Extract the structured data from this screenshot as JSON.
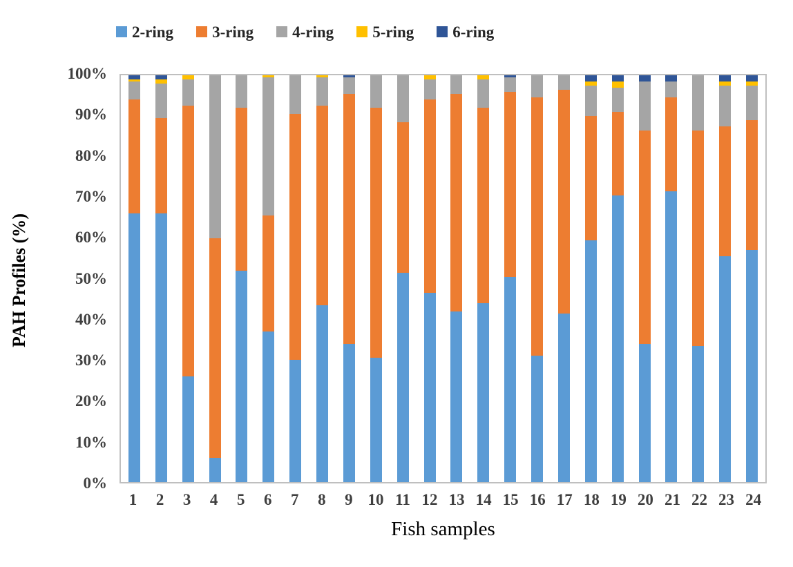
{
  "figure": {
    "background": "#ffffff",
    "plot_border_color": "#bfbfbf",
    "tick_text_color": "#3f3f3f",
    "title_text_color": "#000000"
  },
  "y_axis": {
    "title": "PAH Profiles (%)",
    "ticks": [
      "0%",
      "10%",
      "20%",
      "30%",
      "40%",
      "50%",
      "60%",
      "70%",
      "80%",
      "90%",
      "100%"
    ]
  },
  "x_axis": {
    "title": "Fish samples"
  },
  "legend": {
    "position": "top",
    "items": [
      {
        "label": "2-ring",
        "color": "#5B9BD5"
      },
      {
        "label": "3-ring",
        "color": "#ED7D31"
      },
      {
        "label": "4-ring",
        "color": "#A5A5A5"
      },
      {
        "label": "5-ring",
        "color": "#FFC000"
      },
      {
        "label": "6-ring",
        "color": "#2F5597"
      }
    ]
  },
  "chart_data": {
    "type": "bar",
    "stacked": true,
    "units": "percent",
    "title": "",
    "xlabel": "Fish samples",
    "ylabel": "PAH Profiles (%)",
    "ylim": [
      0,
      100
    ],
    "grid": false,
    "legend_position": "top",
    "categories": [
      "1",
      "2",
      "3",
      "4",
      "5",
      "6",
      "7",
      "8",
      "9",
      "10",
      "11",
      "12",
      "13",
      "14",
      "15",
      "16",
      "17",
      "18",
      "19",
      "20",
      "21",
      "22",
      "23",
      "24"
    ],
    "series": [
      {
        "name": "2-ring",
        "color": "#5B9BD5",
        "values": [
          66,
          66,
          26,
          6,
          52,
          37,
          30,
          43.5,
          34,
          30.5,
          51.5,
          46.5,
          42,
          44,
          50.5,
          31,
          41.5,
          59.5,
          70.5,
          34,
          71.5,
          33.5,
          55.5,
          57
        ]
      },
      {
        "name": "3-ring",
        "color": "#ED7D31",
        "values": [
          28,
          23.5,
          66.5,
          54,
          40,
          28.5,
          60.5,
          49,
          61.5,
          61.5,
          37,
          47.5,
          53.5,
          48,
          45.5,
          63.5,
          55,
          30.5,
          20.5,
          52.5,
          23,
          53,
          32,
          32
        ]
      },
      {
        "name": "4-ring",
        "color": "#A5A5A5",
        "values": [
          4.5,
          8.5,
          6.5,
          40,
          8,
          34,
          9.5,
          7,
          4,
          8,
          11.5,
          5,
          4.5,
          7,
          3.5,
          5.5,
          3.5,
          7.5,
          6,
          12,
          4,
          13.5,
          10,
          8.5
        ]
      },
      {
        "name": "5-ring",
        "color": "#FFC000",
        "values": [
          0.5,
          1,
          1,
          0,
          0,
          0.5,
          0,
          0.5,
          0,
          0,
          0,
          1,
          0,
          1,
          0,
          0,
          0,
          1,
          1.5,
          0,
          0,
          0,
          1,
          1
        ]
      },
      {
        "name": "6-ring",
        "color": "#2F5597",
        "values": [
          1,
          1,
          0,
          0,
          0,
          0,
          0,
          0,
          0.5,
          0,
          0,
          0,
          0,
          0,
          0.5,
          0,
          0,
          1.5,
          1.5,
          1.5,
          1.5,
          0,
          1.5,
          1.5
        ]
      }
    ]
  }
}
